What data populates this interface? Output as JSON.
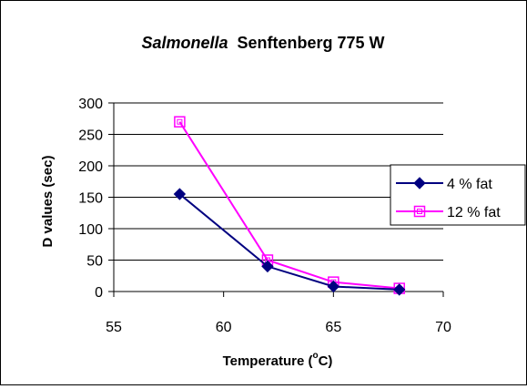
{
  "chart_data": {
    "type": "scatter",
    "title_italic": "Salmonella",
    "title_rest": "Senftenberg 775 W",
    "xlabel": "Temperature (",
    "xlabel_sup": "o",
    "xlabel_end": "C)",
    "ylabel": "D values (sec)",
    "xlim": [
      55,
      70
    ],
    "ylim": [
      0,
      300
    ],
    "xticks": [
      "55",
      "60",
      "65",
      "70"
    ],
    "yticks": [
      "0",
      "50",
      "100",
      "150",
      "200",
      "250",
      "300"
    ],
    "grid": "horizontal",
    "legend_position": "right",
    "series": [
      {
        "name": "4 % fat",
        "color": "#000080",
        "marker": "diamond",
        "x": [
          58,
          62,
          65,
          68
        ],
        "y": [
          155,
          40,
          8,
          3
        ]
      },
      {
        "name": "12 % fat",
        "color": "#ff00ff",
        "marker": "square-open",
        "x": [
          58,
          62,
          65,
          68
        ],
        "y": [
          270,
          50,
          15,
          5
        ]
      }
    ]
  }
}
